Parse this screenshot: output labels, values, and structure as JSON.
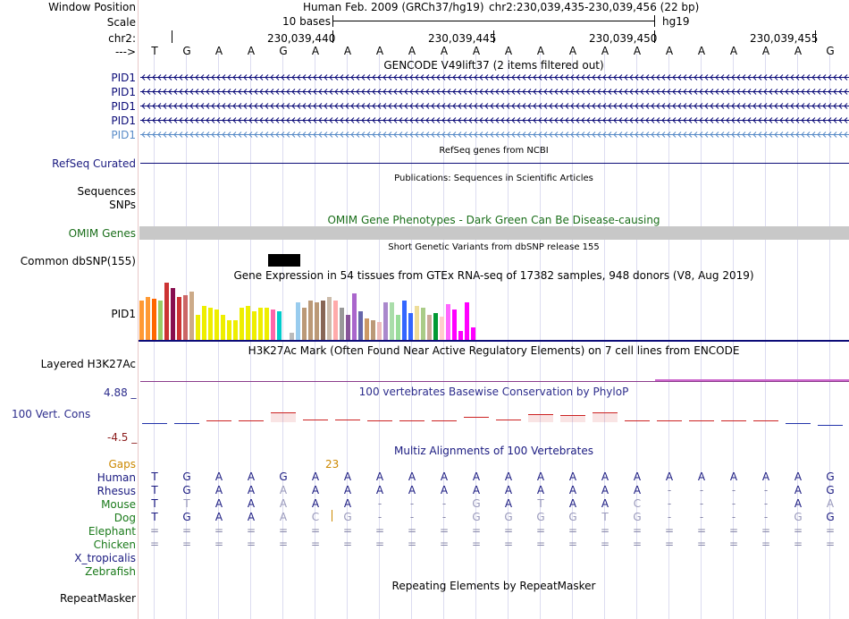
{
  "header": {
    "window_position_label": "Window Position",
    "assembly": "Human Feb. 2009 (GRCh37/hg19)",
    "position": "chr2:230,039,435-230,039,456 (22 bp)",
    "scale_label": "Scale",
    "scale_value": "10 bases",
    "scale_db": "hg19",
    "chrom_label": "chr2:",
    "ticks": [
      "230,039,440",
      "230,039,445",
      "230,039,450",
      "230,039,455"
    ],
    "strand_arrow": "--->"
  },
  "sequence": [
    "T",
    "G",
    "A",
    "A",
    "G",
    "A",
    "A",
    "A",
    "A",
    "A",
    "A",
    "A",
    "A",
    "A",
    "A",
    "A",
    "A",
    "A",
    "A",
    "A",
    "A",
    "G"
  ],
  "gencode": {
    "title": "GENCODE V49lift37 (2 items filtered out)",
    "tracks": [
      {
        "name": "PID1",
        "color": "#0c0c78"
      },
      {
        "name": "PID1",
        "color": "#0c0c78"
      },
      {
        "name": "PID1",
        "color": "#0c0c78"
      },
      {
        "name": "PID1",
        "color": "#0c0c78"
      },
      {
        "name": "PID1",
        "color": "#5a8cc8"
      }
    ]
  },
  "refseq": {
    "title": "RefSeq genes from NCBI",
    "label": "RefSeq Curated"
  },
  "publications": {
    "title": "Publications: Sequences in Scientific Articles",
    "label": "Sequences"
  },
  "snps": {
    "label": "SNPs"
  },
  "omim": {
    "title": "OMIM Gene Phenotypes - Dark Green Can Be Disease-causing",
    "label": "OMIM Genes"
  },
  "dbsnp": {
    "title": "Short Genetic Variants from dbSNP release 155",
    "label": "Common dbSNP(155)"
  },
  "gtex": {
    "title": "Gene Expression in 54 tissues from GTEx RNA-seq of 17382 samples, 948 donors (V8, Aug 2019)",
    "label": "PID1",
    "values": [
      44,
      48,
      46,
      44,
      64,
      58,
      48,
      50,
      54,
      28,
      38,
      36,
      34,
      28,
      22,
      22,
      36,
      38,
      32,
      36,
      36,
      34,
      32,
      44,
      8,
      42,
      36,
      44,
      42,
      44,
      48,
      44,
      36,
      28,
      52,
      32,
      24,
      22,
      20,
      42,
      42,
      28,
      44,
      30,
      38,
      36,
      28,
      30,
      26,
      40,
      34,
      10,
      42,
      14
    ],
    "colors": [
      "#ff9933",
      "#ff9933",
      "#ff6600",
      "#99cc66",
      "#cc3333",
      "#880e4f",
      "#cc3333",
      "#cc6666",
      "#ccaa88",
      "#eeee00",
      "#eeee00",
      "#eeee00",
      "#eeee00",
      "#eeee00",
      "#eeee00",
      "#eeee00",
      "#eeee00",
      "#eeee00",
      "#eeee00",
      "#eeee00",
      "#eeee00",
      "#ff66aa",
      "#00cccc",
      "#ffffff",
      "#bbbbbb",
      "#99ccee",
      "#bb9977",
      "#bb9977",
      "#bb9977",
      "#886655",
      "#ccbbaa",
      "#ffaaaa",
      "#999999",
      "#885599",
      "#aa66cc",
      "#6666aa",
      "#cc9966",
      "#bb9977",
      "#eebbbb",
      "#aa88cc",
      "#aaddaa",
      "#99dd99",
      "#3366ff",
      "#3366ff",
      "#eedd99",
      "#aacc88",
      "#ccaa99",
      "#009933",
      "#ffcccc",
      "#ff66ff",
      "#ff00ff",
      "#ff00ff",
      "#ff00ff",
      "#ff00ff"
    ]
  },
  "h3k27ac": {
    "title": "H3K27Ac Mark (Often Found Near Active Regulatory Elements) on 7 cell lines from ENCODE",
    "label": "Layered H3K27Ac"
  },
  "conservation": {
    "title": "100 vertebrates Basewise Conservation by PhyloP",
    "label": "100 Vert. Cons",
    "max": "4.88 _",
    "min": "-4.5 _",
    "values": [
      -0.3,
      -0.4,
      0.2,
      0.2,
      1.6,
      0.3,
      0.3,
      0,
      0,
      0.2,
      0.8,
      0.4,
      1.4,
      1.2,
      1.6,
      0.2,
      0.2,
      0.2,
      0.2,
      0,
      -0.3,
      -0.6
    ]
  },
  "multiz": {
    "title": "Multiz Alignments of 100 Vertebrates",
    "gaps_label": "Gaps",
    "gap_count": "23",
    "rows": [
      {
        "species": "Human",
        "color": "#1a1a80",
        "bases": [
          "T",
          "G",
          "A",
          "A",
          "G",
          "A",
          "A",
          "A",
          "A",
          "A",
          "A",
          "A",
          "A",
          "A",
          "A",
          "A",
          "A",
          "A",
          "A",
          "A",
          "A",
          "G"
        ]
      },
      {
        "species": "Rhesus",
        "color": "#1a1a80",
        "bases": [
          "T",
          "G",
          "A",
          "A",
          "A",
          "A",
          "A",
          "A",
          "A",
          "A",
          "A",
          "A",
          "A",
          "A",
          "A",
          "A",
          "-",
          "-",
          "-",
          "-",
          "A",
          "G"
        ]
      },
      {
        "species": "Mouse",
        "color": "#1a7a1a",
        "bases": [
          "T",
          "T",
          "A",
          "A",
          "A",
          "A",
          "A",
          "-",
          "-",
          "-",
          "G",
          "A",
          "T",
          "A",
          "A",
          "C",
          "-",
          "-",
          "-",
          "-",
          "A",
          "A"
        ]
      },
      {
        "species": "Dog",
        "color": "#1a7a1a",
        "bases": [
          "T",
          "G",
          "A",
          "A",
          "A",
          "C",
          "G",
          "-",
          "-",
          "-",
          "G",
          "G",
          "G",
          "G",
          "T",
          "G",
          "-",
          "-",
          "-",
          "-",
          "G",
          "G"
        ]
      },
      {
        "species": "Elephant",
        "color": "#1a7a1a",
        "bases": [
          "=",
          "=",
          "=",
          "=",
          "=",
          "=",
          "=",
          "=",
          "=",
          "=",
          "=",
          "=",
          "=",
          "=",
          "=",
          "=",
          "=",
          "=",
          "=",
          "=",
          "=",
          "="
        ]
      },
      {
        "species": "Chicken",
        "color": "#1a7a1a",
        "bases": [
          "=",
          "=",
          "=",
          "=",
          "=",
          "=",
          "=",
          "=",
          "=",
          "=",
          "=",
          "=",
          "=",
          "=",
          "=",
          "=",
          "=",
          "=",
          "=",
          "=",
          "=",
          "="
        ]
      },
      {
        "species": "X_tropicalis",
        "color": "#1a1a80",
        "bases": []
      },
      {
        "species": "Zebrafish",
        "color": "#1a7a1a",
        "bases": []
      }
    ]
  },
  "repeatmasker": {
    "title": "Repeating Elements by RepeatMasker",
    "label": "RepeatMasker"
  }
}
